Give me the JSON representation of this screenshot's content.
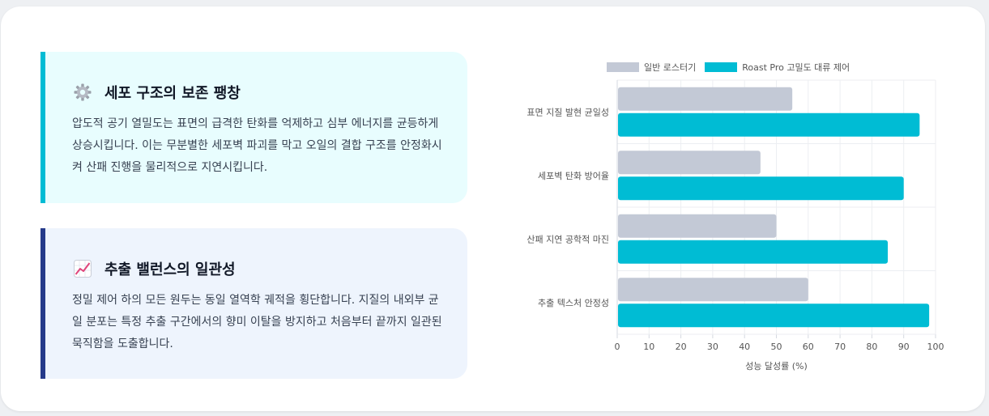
{
  "features": [
    {
      "icon": "gear-icon",
      "title": "세포 구조의 보존 팽창",
      "body": "압도적 공기 열밀도는 표면의 급격한 탄화를 억제하고 심부 에너지를 균등하게 상승시킵니다. 이는 무분별한 세포벽 파괴를 막고 오일의 결합 구조를 안정화시켜 산패 진행을 물리적으로 지연시킵니다.",
      "accent": "#00bcd4"
    },
    {
      "icon": "chart-increasing-icon",
      "title": "추출 밸런스의 일관성",
      "body": "정밀 제어 하의 모든 원두는 동일 열역학 궤적을 횡단합니다. 지질의 내외부 균일 분포는 특정 추출 구간에서의 향미 이탈을 방지하고 처음부터 끝까지 일관된 묵직함을 도출합니다.",
      "accent": "#253a8a"
    }
  ],
  "chart_data": {
    "type": "bar",
    "orientation": "horizontal",
    "categories": [
      "표면 지질 발현 균일성",
      "세포벽 탄화 방어율",
      "산패 지연 공학적 마진",
      "추출 텍스처 안정성"
    ],
    "series": [
      {
        "name": "일반 로스터기",
        "values": [
          55,
          45,
          50,
          60
        ],
        "color": "#c3c9d6"
      },
      {
        "name": "Roast Pro 고밀도 대류 제어",
        "values": [
          95,
          90,
          85,
          98
        ],
        "color": "#00bcd4"
      }
    ],
    "xlabel": "성능 달성률 (%)",
    "ylabel": "",
    "xlim": [
      0,
      100
    ],
    "xticks": [
      "0",
      "10",
      "20",
      "30",
      "40",
      "50",
      "60",
      "70",
      "80",
      "90",
      "100"
    ],
    "grid": true,
    "legend": "top"
  }
}
